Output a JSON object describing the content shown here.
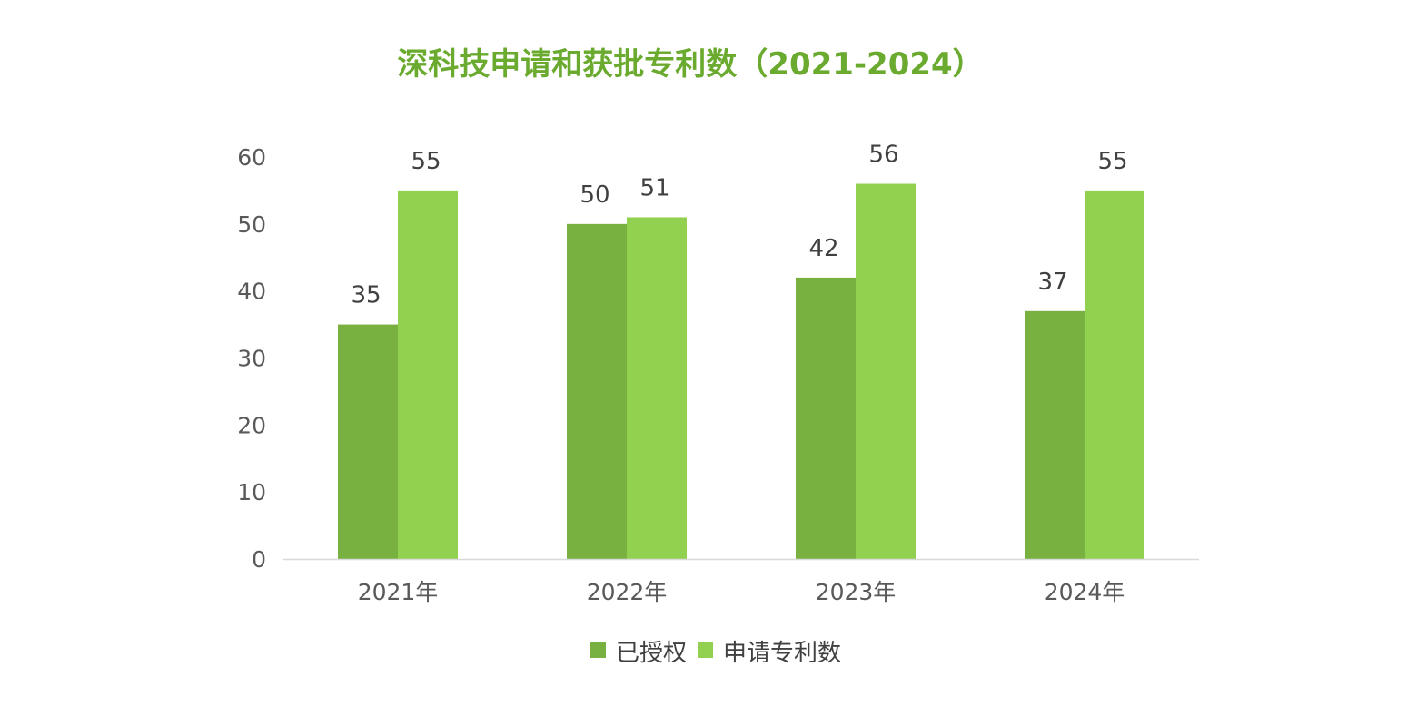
{
  "chart_data": {
    "type": "bar",
    "title": "深科技申请和获批专利数（2021-2024）",
    "xlabel": "",
    "ylabel": "",
    "categories": [
      "2021年",
      "2022年",
      "2023年",
      "2024年"
    ],
    "series": [
      {
        "name": "已授权",
        "values": [
          35,
          50,
          42,
          37
        ],
        "color": "#78b13f"
      },
      {
        "name": "申请专利数",
        "values": [
          55,
          51,
          56,
          55
        ],
        "color": "#92d050"
      }
    ],
    "ylim": [
      0,
      60
    ],
    "yticks": [
      0,
      10,
      20,
      30,
      40,
      50,
      60
    ],
    "grid": false,
    "legend_position": "bottom",
    "data_labels": true,
    "title_color": "#6aaa2e"
  }
}
